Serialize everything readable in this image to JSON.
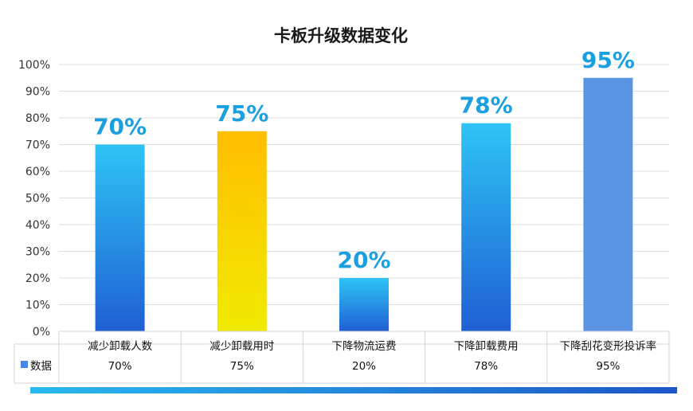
{
  "chart_data": {
    "type": "bar",
    "title": "卡板升级数据变化",
    "categories": [
      "减少卸载人数",
      "减少卸载用时",
      "下降物流运费",
      "下降卸载费用",
      "下降刮花变形投诉率"
    ],
    "series": [
      {
        "name": "数据",
        "values": [
          70,
          75,
          20,
          78,
          95
        ]
      }
    ],
    "value_labels": [
      "70%",
      "75%",
      "20%",
      "78%",
      "95%"
    ],
    "table_values": [
      "70%",
      "75%",
      "20%",
      "78%",
      "95%"
    ],
    "yticks": [
      "0%",
      "10%",
      "20%",
      "30%",
      "40%",
      "50%",
      "60%",
      "70%",
      "80%",
      "90%",
      "100%"
    ],
    "ylim": [
      0,
      100
    ],
    "xlabel": "",
    "ylabel": "",
    "grid": true,
    "legend": "data-table-left",
    "bar_fills": [
      "blue-gradient",
      "yellow-gradient",
      "blue-gradient",
      "blue-gradient",
      "solid-blue"
    ],
    "colors": {
      "blue_top": "#2ec4f5",
      "blue_bottom": "#1f5fd3",
      "yellow_top": "#ffbe00",
      "yellow_bottom": "#f1ea00",
      "solid_blue": "#5b94e3",
      "legend_key": "#4a86e8",
      "label_color": "#1aa0e0",
      "footer_start": "#2ab8ef",
      "footer_end": "#1e56c8"
    }
  }
}
